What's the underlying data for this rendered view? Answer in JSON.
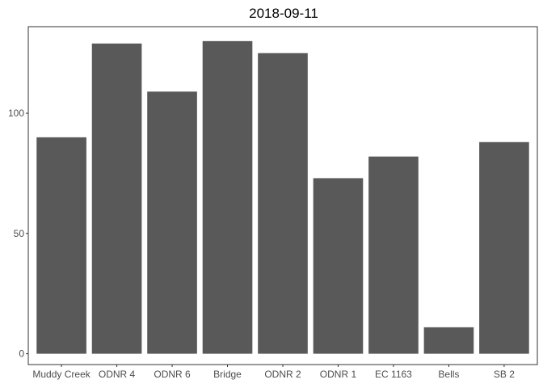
{
  "chart_data": {
    "type": "bar",
    "title": "2018-09-11",
    "xlabel": "",
    "ylabel": "",
    "categories": [
      "Muddy Creek",
      "ODNR 4",
      "ODNR 6",
      "Bridge",
      "ODNR 2",
      "ODNR 1",
      "EC 1163",
      "Bells",
      "SB 2"
    ],
    "values": [
      90,
      129,
      109,
      130,
      125,
      73,
      82,
      11,
      88
    ],
    "ylim": [
      -4.5,
      136
    ],
    "yticks": [
      0,
      50,
      100
    ],
    "grid": false,
    "bar_color": "#595959",
    "panel_border_color": "#333333"
  }
}
